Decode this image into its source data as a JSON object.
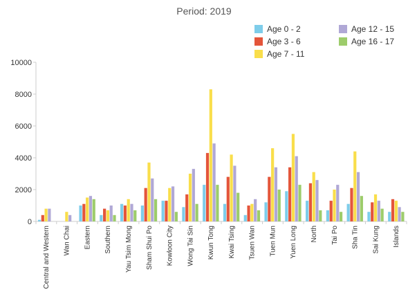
{
  "chart_data": {
    "type": "bar",
    "title": "Period: 2019",
    "xlabel": "",
    "ylabel": "",
    "ylim": [
      0,
      10000
    ],
    "yticks": [
      "0",
      "2000",
      "4000",
      "6000",
      "8000",
      "10000"
    ],
    "grid": false,
    "legend_position": "top-right",
    "categories": [
      "Central and Western",
      "Wan Chai",
      "Eastern",
      "Southern",
      "Yau Tsim Mong",
      "Sham Shui Po",
      "Kowloon City",
      "Wong Tai Sin",
      "Kwun Tong",
      "Kwai Tsing",
      "Tsuen Wan",
      "Tuen Mun",
      "Yuen Long",
      "North",
      "Tai Po",
      "Sha Tin",
      "Sai Kung",
      "Islands"
    ],
    "series": [
      {
        "name": "Age 0 - 2",
        "color": "#7ecdea",
        "values": [
          100,
          0,
          1000,
          400,
          1100,
          1000,
          1300,
          900,
          2300,
          1100,
          400,
          1200,
          1900,
          1300,
          700,
          1100,
          600,
          600
        ]
      },
      {
        "name": "Age 3 - 6",
        "color": "#e4553a",
        "values": [
          400,
          0,
          1100,
          800,
          1000,
          2100,
          1300,
          1700,
          4300,
          2800,
          1000,
          2800,
          3400,
          2400,
          1300,
          2100,
          1200,
          1400
        ]
      },
      {
        "name": "Age 7 - 11",
        "color": "#f9de4b",
        "values": [
          800,
          600,
          1500,
          700,
          1400,
          3700,
          2100,
          3000,
          8300,
          4200,
          1100,
          4600,
          5500,
          3100,
          2000,
          4400,
          1700,
          1300
        ]
      },
      {
        "name": "Age 12 - 15",
        "color": "#b0a8d6",
        "values": [
          800,
          400,
          1600,
          1000,
          1100,
          2700,
          2200,
          3300,
          4900,
          3500,
          1400,
          3400,
          4100,
          2600,
          2300,
          3100,
          1300,
          900
        ]
      },
      {
        "name": "Age 16 - 17",
        "color": "#9dcc6b",
        "values": [
          0,
          0,
          1400,
          400,
          700,
          1400,
          600,
          1100,
          2300,
          1800,
          700,
          2000,
          2300,
          700,
          600,
          1600,
          800,
          600
        ]
      }
    ]
  }
}
